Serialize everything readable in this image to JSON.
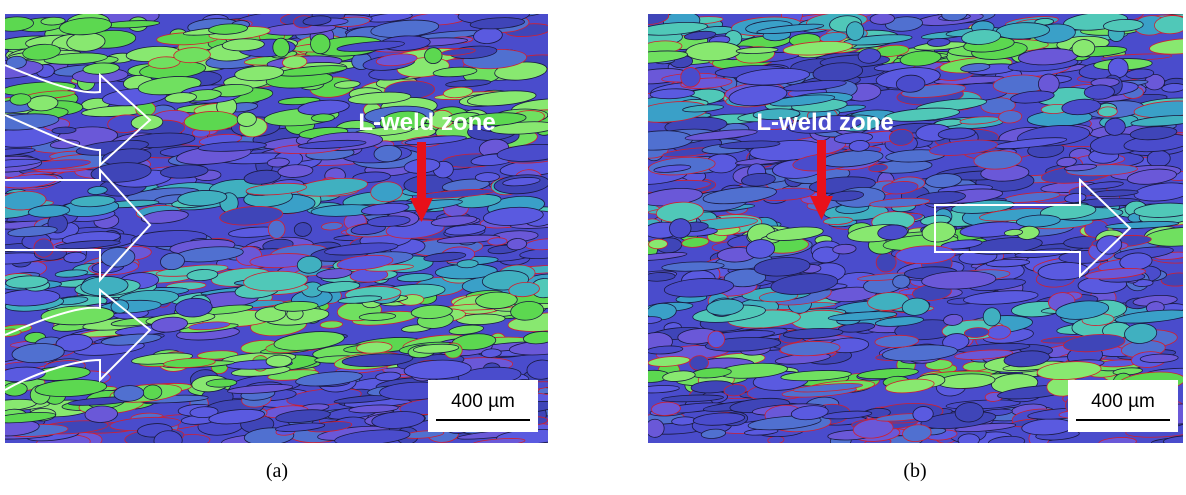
{
  "panels": [
    {
      "label": "L-weld zone",
      "scale_bar": "400 µm",
      "caption": "(a)"
    },
    {
      "label": "L-weld zone",
      "scale_bar": "400 µm",
      "caption": "(b)"
    }
  ]
}
